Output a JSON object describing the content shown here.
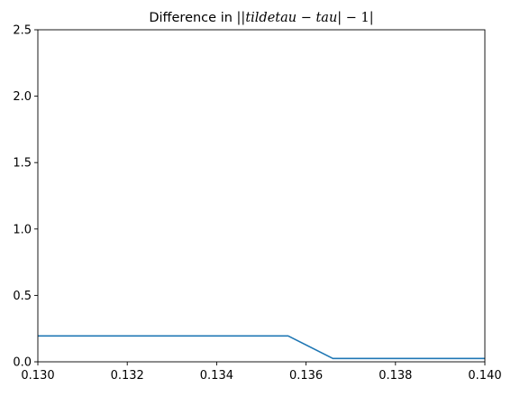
{
  "chart_data": {
    "type": "line",
    "title": {
      "prefix": "Difference in ",
      "math_parts": [
        {
          "text": "||",
          "style": "up"
        },
        {
          "text": "tildetau",
          "style": "it"
        },
        {
          "text": " − ",
          "style": "up"
        },
        {
          "text": "tau",
          "style": "it"
        },
        {
          "text": "| − 1|",
          "style": "up"
        }
      ]
    },
    "xlabel": "",
    "ylabel": "",
    "xlim": [
      0.13,
      0.14
    ],
    "ylim": [
      0,
      2.5
    ],
    "x_ticks": [
      0.13,
      0.132,
      0.134,
      0.136,
      0.138,
      0.14
    ],
    "x_tick_labels": [
      "0.130",
      "0.132",
      "0.134",
      "0.136",
      "0.138",
      "0.140"
    ],
    "y_ticks": [
      0.0,
      0.5,
      1.0,
      1.5,
      2.0,
      2.5
    ],
    "y_tick_labels": [
      "0.0",
      "0.5",
      "1.0",
      "1.5",
      "2.0",
      "2.5"
    ],
    "grid": false,
    "series": [
      {
        "color": "#1f77b4",
        "x": [
          0.13,
          0.1356,
          0.1366,
          0.14
        ],
        "y": [
          0.195,
          0.195,
          0.025,
          0.025
        ]
      }
    ]
  }
}
